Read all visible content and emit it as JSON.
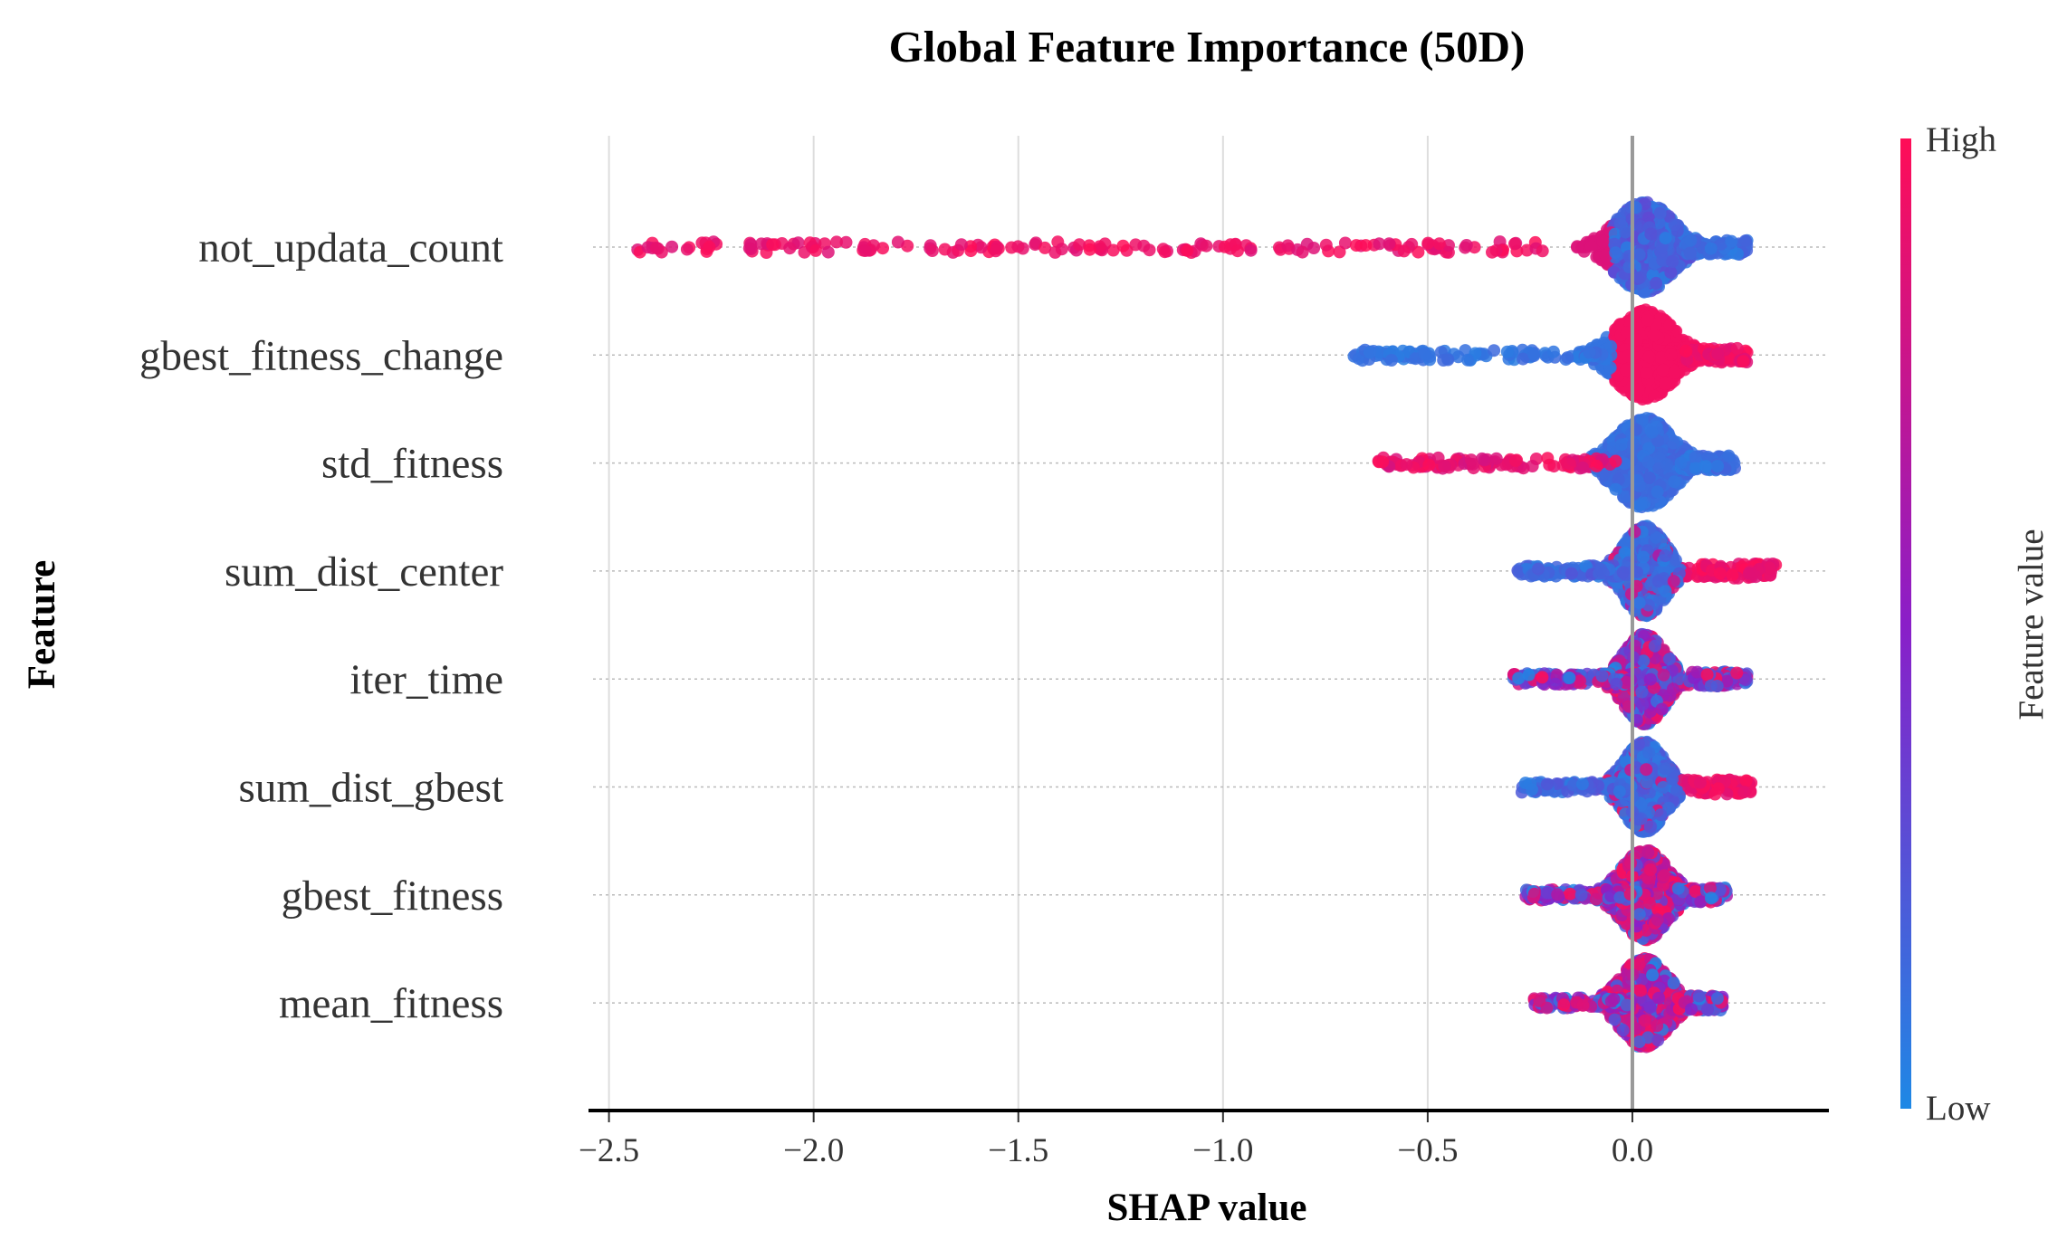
{
  "chart_data": {
    "type": "scatter",
    "subtype": "shap-beeswarm",
    "title": "Global Feature Importance (50D)",
    "xlabel": "SHAP value",
    "ylabel": "Feature",
    "xlim": [
      -2.55,
      0.48
    ],
    "xticks": [
      -2.5,
      -2.0,
      -1.5,
      -1.0,
      -0.5,
      0.0
    ],
    "xtick_labels": [
      "−2.5",
      "−2.0",
      "−1.5",
      "−1.0",
      "−0.5",
      "0.0"
    ],
    "grid": "vertical",
    "colorbar": {
      "label": "Feature value",
      "high_label": "High",
      "low_label": "Low",
      "high_color": "#ff0d57",
      "mid_color": "#8a1ec8",
      "low_color": "#1e88e5"
    },
    "features": [
      {
        "name": "not_updata_count",
        "min": -2.43,
        "max": 0.28,
        "spread": 0.055,
        "pattern": "long-tail-high-left"
      },
      {
        "name": "gbest_fitness_change",
        "min": -0.68,
        "max": 0.28,
        "spread": 0.055,
        "pattern": "low-left-high-right"
      },
      {
        "name": "std_fitness",
        "min": -0.62,
        "max": 0.25,
        "spread": 0.055,
        "pattern": "high-left-low-right"
      },
      {
        "name": "sum_dist_center",
        "min": -0.28,
        "max": 0.35,
        "spread": 0.04,
        "pattern": "low-left-high-right-soft"
      },
      {
        "name": "iter_time",
        "min": -0.29,
        "max": 0.28,
        "spread": 0.04,
        "pattern": "mixed"
      },
      {
        "name": "sum_dist_gbest",
        "min": -0.27,
        "max": 0.29,
        "spread": 0.04,
        "pattern": "low-left-high-right-soft"
      },
      {
        "name": "gbest_fitness",
        "min": -0.26,
        "max": 0.23,
        "spread": 0.045,
        "pattern": "mixed-high"
      },
      {
        "name": "mean_fitness",
        "min": -0.24,
        "max": 0.22,
        "spread": 0.045,
        "pattern": "mixed-high"
      }
    ]
  }
}
